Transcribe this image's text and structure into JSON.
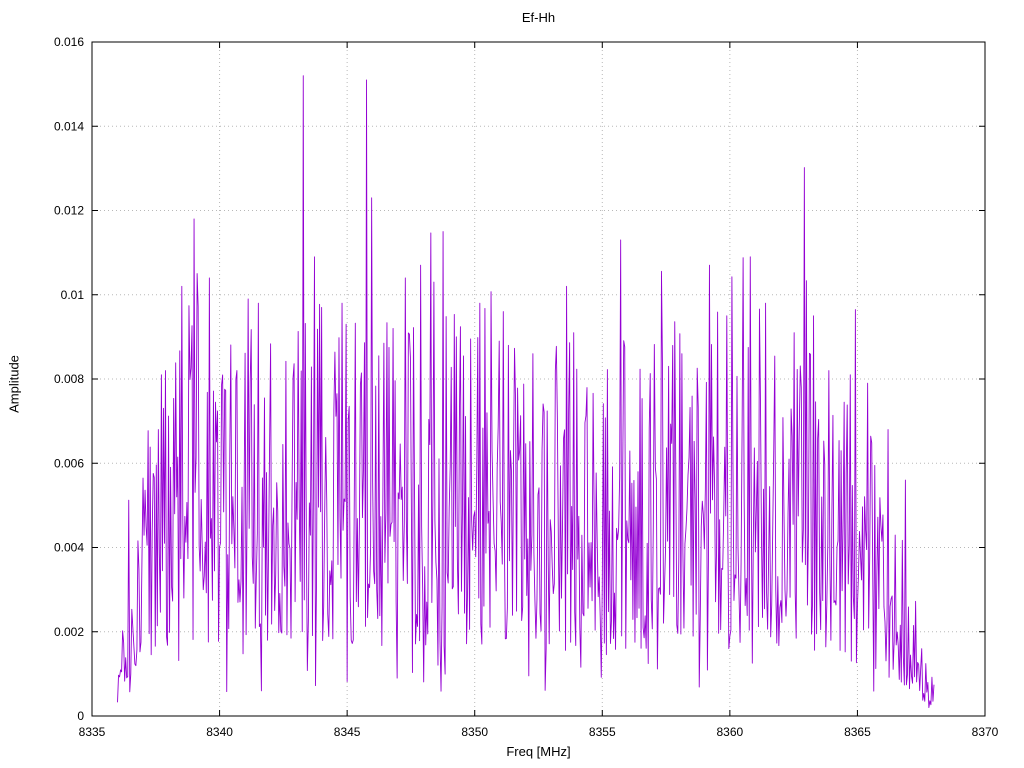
{
  "chart_data": {
    "type": "line",
    "title": "Ef-Hh",
    "xlabel": "Freq [MHz]",
    "ylabel": "Amplitude",
    "xlim": [
      8335,
      8370
    ],
    "ylim": [
      0,
      0.016
    ],
    "grid": "dotted",
    "legend": "none",
    "series_color": "#9400d3",
    "grid_color": "#b8b8b8",
    "border_color": "#000000",
    "xticks": [
      {
        "v": 8335,
        "label": "8335"
      },
      {
        "v": 8340,
        "label": "8340"
      },
      {
        "v": 8345,
        "label": "8345"
      },
      {
        "v": 8350,
        "label": "8350"
      },
      {
        "v": 8355,
        "label": "8355"
      },
      {
        "v": 8360,
        "label": "8360"
      },
      {
        "v": 8365,
        "label": "8365"
      },
      {
        "v": 8370,
        "label": "8370"
      }
    ],
    "yticks": [
      {
        "v": 0,
        "label": "0"
      },
      {
        "v": 0.002,
        "label": "0.002"
      },
      {
        "v": 0.004,
        "label": "0.004"
      },
      {
        "v": 0.006,
        "label": "0.006"
      },
      {
        "v": 0.008,
        "label": "0.008"
      },
      {
        "v": 0.01,
        "label": "0.01"
      },
      {
        "v": 0.012,
        "label": "0.012"
      },
      {
        "v": 0.014,
        "label": "0.014"
      },
      {
        "v": 0.016,
        "label": "0.016"
      }
    ],
    "signal_span": {
      "x_start": 8336.0,
      "x_end": 8368.0,
      "x_step": 0.04
    },
    "envelope": [
      [
        8336.0,
        0.0008
      ],
      [
        8336.3,
        0.002
      ],
      [
        8336.8,
        0.0036
      ],
      [
        8337.5,
        0.0055
      ],
      [
        8338.5,
        0.0062
      ],
      [
        8340.0,
        0.0058
      ],
      [
        8342.0,
        0.006
      ],
      [
        8344.0,
        0.0062
      ],
      [
        8346.0,
        0.006
      ],
      [
        8348.0,
        0.0058
      ],
      [
        8350.0,
        0.006
      ],
      [
        8352.0,
        0.0058
      ],
      [
        8354.0,
        0.0055
      ],
      [
        8356.0,
        0.0057
      ],
      [
        8358.0,
        0.0058
      ],
      [
        8360.0,
        0.0062
      ],
      [
        8361.0,
        0.0063
      ],
      [
        8362.0,
        0.0058
      ],
      [
        8363.0,
        0.0055
      ],
      [
        8364.0,
        0.005
      ],
      [
        8365.0,
        0.0045
      ],
      [
        8365.5,
        0.0042
      ],
      [
        8366.0,
        0.0035
      ],
      [
        8366.5,
        0.003
      ],
      [
        8367.0,
        0.0022
      ],
      [
        8367.5,
        0.0013
      ],
      [
        8368.0,
        0.001
      ]
    ],
    "peaks": [
      [
        8337.9,
        0.0082
      ],
      [
        8338.5,
        0.0102
      ],
      [
        8339.0,
        0.0118
      ],
      [
        8339.6,
        0.0104
      ],
      [
        8341.1,
        0.0099
      ],
      [
        8341.5,
        0.0098
      ],
      [
        8343.7,
        0.0109
      ],
      [
        8344.0,
        0.0097
      ],
      [
        8344.8,
        0.0098
      ],
      [
        8345.75,
        0.0151
      ],
      [
        8345.95,
        0.0123
      ],
      [
        8346.8,
        0.0092
      ],
      [
        8347.3,
        0.0104
      ],
      [
        8347.9,
        0.0107
      ],
      [
        8348.4,
        0.0103
      ],
      [
        8348.75,
        0.0115
      ],
      [
        8349.3,
        0.009
      ],
      [
        8350.2,
        0.0098
      ],
      [
        8351.1,
        0.0096
      ],
      [
        8352.3,
        0.0086
      ],
      [
        8353.6,
        0.0102
      ],
      [
        8353.9,
        0.0091
      ],
      [
        8355.7,
        0.0113
      ],
      [
        8357.6,
        0.0083
      ],
      [
        8358.1,
        0.0086
      ],
      [
        8359.2,
        0.0107
      ],
      [
        8359.9,
        0.0095
      ],
      [
        8360.8,
        0.0109
      ],
      [
        8361.4,
        0.0098
      ],
      [
        8362.5,
        0.0091
      ],
      [
        8363.3,
        0.0095
      ],
      [
        8363.9,
        0.0082
      ],
      [
        8364.7,
        0.0081
      ],
      [
        8365.4,
        0.0079
      ],
      [
        8366.2,
        0.0068
      ],
      [
        8366.9,
        0.0056
      ]
    ],
    "noise": {
      "seed": 1337,
      "floor": 0.0002,
      "ceil": 0.0152
    }
  }
}
